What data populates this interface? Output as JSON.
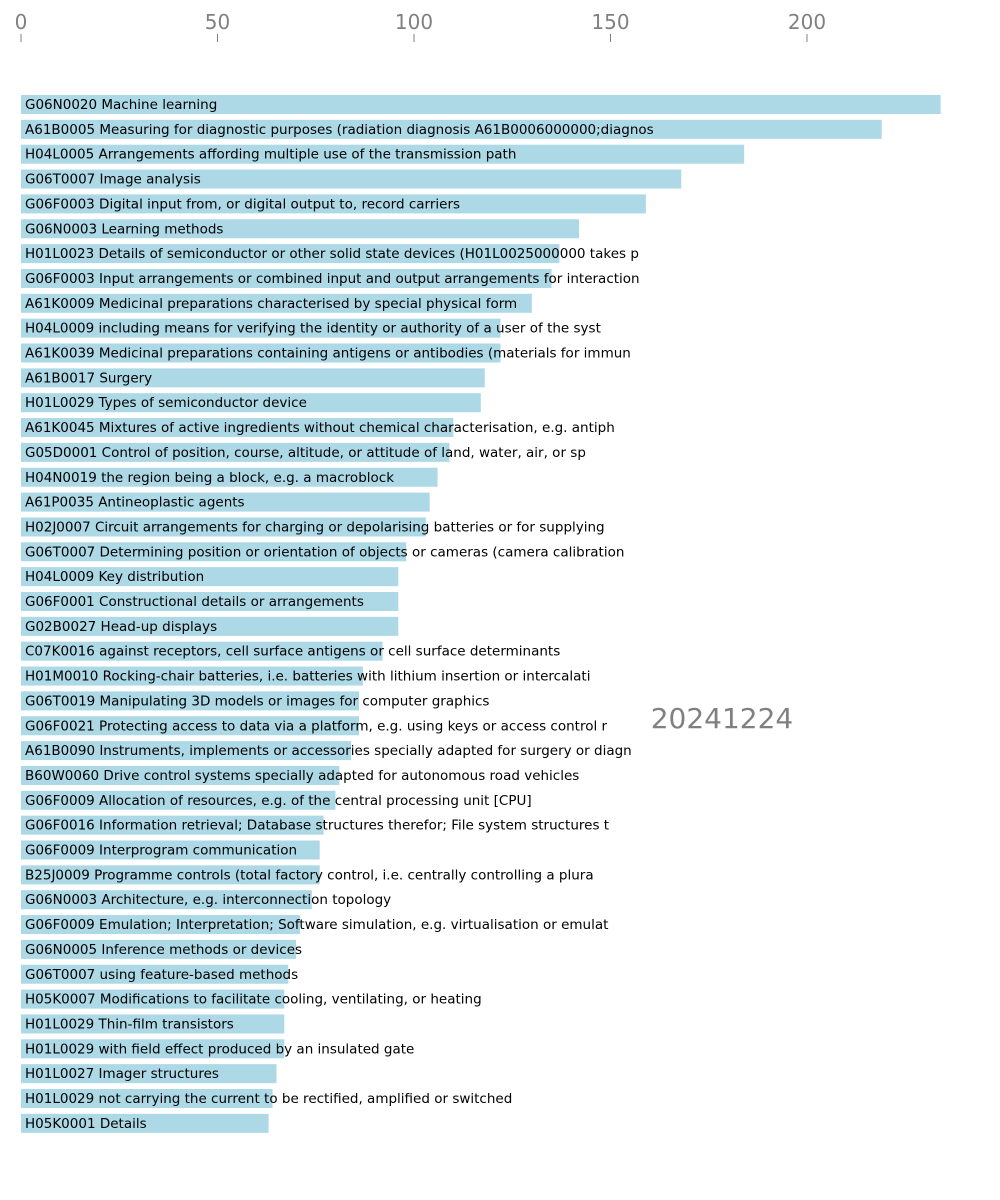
{
  "chart_data": {
    "type": "bar",
    "orientation": "horizontal",
    "xlim": [
      0,
      240
    ],
    "xticks": [
      0,
      50,
      100,
      150,
      200
    ],
    "grid": false,
    "annotation": "20241224",
    "colors": {
      "bar": "#add8e6",
      "tick": "#808080",
      "label": "#000000"
    },
    "categories": [
      "G06N0020 Machine learning",
      "A61B0005 Measuring for diagnostic purposes (radiation diagnosis A61B0006000000;diagnos",
      "H04L0005 Arrangements affording multiple use of the transmission path",
      "G06T0007 Image analysis",
      "G06F0003 Digital input from, or digital output to, record carriers",
      "G06N0003 Learning methods",
      "H01L0023 Details of semiconductor or other solid state devices (H01L0025000000 takes p",
      "G06F0003 Input arrangements or combined input and output arrangements for interaction",
      "A61K0009 Medicinal preparations characterised by special physical form",
      "H04L0009 including means for verifying the identity or authority of a user of the syst",
      "A61K0039 Medicinal preparations containing antigens or antibodies (materials for immun",
      "A61B0017 Surgery",
      "H01L0029 Types of semiconductor device",
      "A61K0045 Mixtures of active ingredients without chemical characterisation, e.g. antiph",
      "G05D0001 Control of position, course, altitude, or attitude of land, water, air, or sp",
      "H04N0019 the region being a block, e.g. a macroblock",
      "A61P0035 Antineoplastic agents",
      "H02J0007 Circuit arrangements for charging or depolarising batteries or for supplying",
      "G06T0007 Determining position or orientation of objects or cameras (camera calibration",
      "H04L0009 Key distribution",
      "G06F0001 Constructional details or arrangements",
      "G02B0027 Head-up displays",
      "C07K0016 against receptors, cell surface antigens or cell surface determinants",
      "H01M0010 Rocking-chair batteries, i.e. batteries with lithium insertion or intercalati",
      "G06T0019 Manipulating 3D models or images for computer graphics",
      "G06F0021 Protecting access to data via a platform, e.g. using keys or access control r",
      "A61B0090 Instruments, implements or accessories specially adapted for surgery or diagn",
      "B60W0060 Drive control systems specially adapted for autonomous road vehicles",
      "G06F0009 Allocation of resources, e.g. of the central processing unit [CPU]",
      "G06F0016 Information retrieval; Database structures therefor; File system structures t",
      "G06F0009 Interprogram communication",
      "B25J0009 Programme controls (total factory control, i.e. centrally controlling a plura",
      "G06N0003 Architecture, e.g. interconnection topology",
      "G06F0009 Emulation; Interpretation; Software simulation, e.g. virtualisation or emulat",
      "G06N0005 Inference methods or devices",
      "G06T0007 using feature-based methods",
      "H05K0007 Modifications to facilitate cooling, ventilating, or heating",
      "H01L0029 Thin-film transistors",
      "H01L0029 with field effect produced by an insulated gate",
      "H01L0027 Imager structures",
      "H01L0029 not carrying the current to be rectified, amplified or switched",
      "H05K0001 Details"
    ],
    "values": [
      234,
      219,
      184,
      168,
      159,
      142,
      137,
      135,
      130,
      122,
      122,
      118,
      117,
      110,
      109,
      106,
      104,
      103,
      98,
      96,
      96,
      96,
      92,
      87,
      86,
      86,
      84,
      81,
      80,
      77,
      76,
      76,
      74,
      71,
      70,
      68,
      67,
      67,
      67,
      65,
      64,
      63
    ]
  }
}
